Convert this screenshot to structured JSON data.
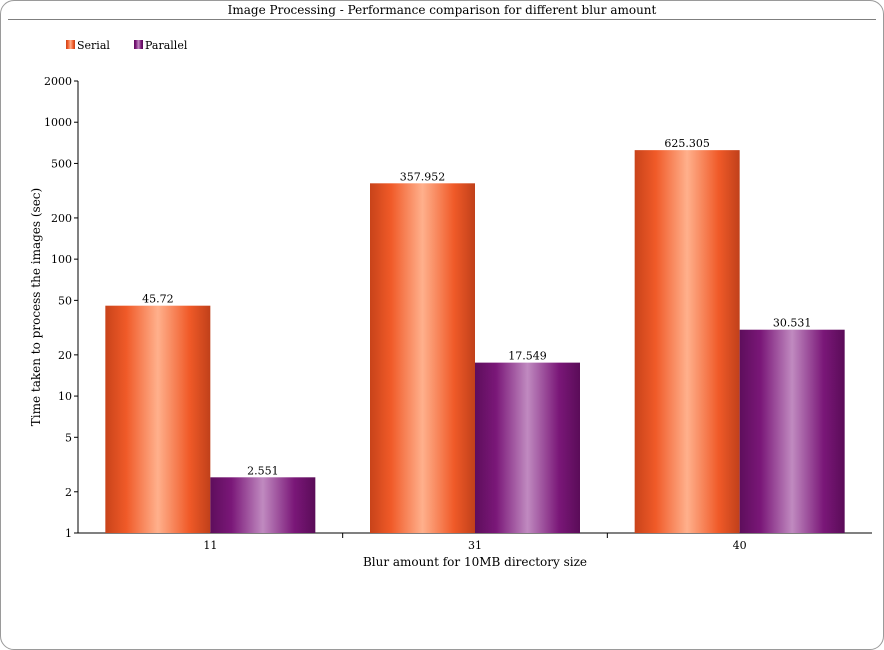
{
  "chart_data": {
    "type": "bar",
    "title": "Image Processing - Performance comparison for different blur amount",
    "xlabel": "Blur amount for 10MB directory size",
    "ylabel": "Time taken to process the images (sec)",
    "yscale": "log",
    "ylim": [
      1,
      2000
    ],
    "yticks": [
      1,
      2,
      5,
      10,
      20,
      50,
      100,
      200,
      500,
      1000,
      2000
    ],
    "categories": [
      "11",
      "31",
      "40"
    ],
    "series": [
      {
        "name": "Serial",
        "values": [
          45.72,
          357.952,
          625.305
        ],
        "labels": [
          "45.72",
          "357.952",
          "625.305"
        ],
        "color": "#f05a28"
      },
      {
        "name": "Parallel",
        "values": [
          2.551,
          17.549,
          30.531
        ],
        "labels": [
          "2.551",
          "17.549",
          "30.531"
        ],
        "color": "#7a1778"
      }
    ],
    "legend_position": "top-left",
    "grid": false
  }
}
